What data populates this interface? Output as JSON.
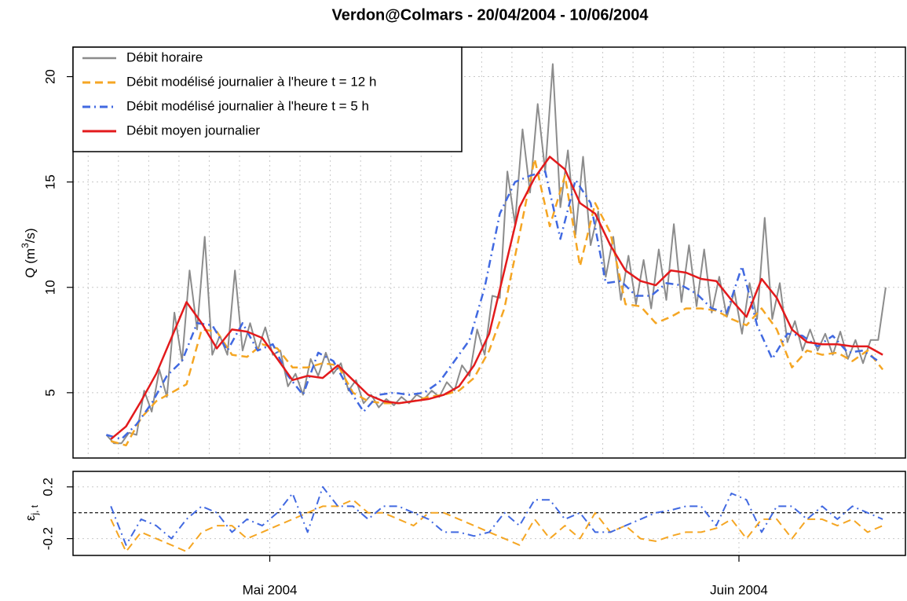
{
  "chart_data": [
    {
      "type": "line",
      "title": "Verdon@Colmars - 20/04/2004 - 10/06/2004",
      "ylabel": [
        "Q (m",
        "3",
        "/s)"
      ],
      "xlim": [
        -13,
        42
      ],
      "ylim": [
        1.9,
        21.4
      ],
      "yticks": [
        5,
        10,
        15,
        20
      ],
      "grid": true,
      "xgrid": [
        -12,
        -10,
        -8,
        -6,
        -4,
        -2,
        0,
        2,
        4,
        6,
        8,
        10,
        12,
        14,
        16,
        18,
        20,
        22,
        24,
        26,
        28,
        30,
        32,
        34,
        36,
        38,
        40
      ],
      "legend": "top-left",
      "series": [
        {
          "name": "Débit horaire",
          "color": "#8c8c8c",
          "dash": "solid",
          "width": 2,
          "x": [
            -10.8,
            -10.3,
            -9.8,
            -9.3,
            -8.8,
            -8.3,
            -7.8,
            -7.3,
            -6.8,
            -6.3,
            -5.8,
            -5.3,
            -4.8,
            -4.3,
            -3.8,
            -3.3,
            -2.8,
            -2.3,
            -1.8,
            -1.3,
            -0.8,
            -0.3,
            0.2,
            0.7,
            1.2,
            1.7,
            2.2,
            2.7,
            3.2,
            3.7,
            4.2,
            4.7,
            5.2,
            5.7,
            6.2,
            6.7,
            7.2,
            7.7,
            8.2,
            8.7,
            9.2,
            9.7,
            10.2,
            10.7,
            11.2,
            11.7,
            12.2,
            12.7,
            13.2,
            13.7,
            14.2,
            14.7,
            15.2,
            15.7,
            16.2,
            16.7,
            17.2,
            17.7,
            18.2,
            18.7,
            19.2,
            19.7,
            20.2,
            20.7,
            21.2,
            21.7,
            22.2,
            22.7,
            23.2,
            23.7,
            24.2,
            24.7,
            25.2,
            25.7,
            26.2,
            26.7,
            27.2,
            27.7,
            28.2,
            28.7,
            29.2,
            29.7,
            30.2,
            30.7,
            31.2,
            31.7,
            32.2,
            32.7,
            33.2,
            33.7,
            34.2,
            34.7,
            35.2,
            35.7,
            36.2,
            36.7,
            37.2,
            37.7,
            38.2,
            38.7,
            39.2,
            39.7,
            40.2,
            40.7
          ],
          "values": [
            3.0,
            2.6,
            2.6,
            3.1,
            3.0,
            5.1,
            4.1,
            6.1,
            4.8,
            8.8,
            6.5,
            10.8,
            8.0,
            12.4,
            6.8,
            7.7,
            6.8,
            10.8,
            7.0,
            8.3,
            7.0,
            8.1,
            6.8,
            7.0,
            5.3,
            5.9,
            4.9,
            6.6,
            5.8,
            6.9,
            5.9,
            6.4,
            5.1,
            5.6,
            4.5,
            4.9,
            4.3,
            4.7,
            4.4,
            4.8,
            4.5,
            4.9,
            4.7,
            5.1,
            4.8,
            5.5,
            5.1,
            6.3,
            5.8,
            8.0,
            6.8,
            9.6,
            9.5,
            15.5,
            13.0,
            17.5,
            14.5,
            18.7,
            15.5,
            20.6,
            13.8,
            16.5,
            12.5,
            16.2,
            12.0,
            13.6,
            10.5,
            12.4,
            9.4,
            11.5,
            9.2,
            11.3,
            9.0,
            11.8,
            9.4,
            13.0,
            9.3,
            12.0,
            9.1,
            11.8,
            8.8,
            10.5,
            8.6,
            9.8,
            7.8,
            10.2,
            8.5,
            13.3,
            8.5,
            10.2,
            7.4,
            8.4,
            7.0,
            8.0,
            7.0,
            7.8,
            6.8,
            7.9,
            6.6,
            7.5,
            6.4,
            7.5,
            7.5,
            10.0
          ]
        },
        {
          "name": "Débit modélisé journalier à l'heure t = 12 h",
          "color": "#f5a623",
          "dash": "dashed",
          "width": 2.5,
          "x": [
            -10.5,
            -9.5,
            -8.5,
            -7.5,
            -6.5,
            -5.5,
            -4.5,
            -3.5,
            -2.5,
            -1.5,
            -0.5,
            0.5,
            1.5,
            2.5,
            3.5,
            4.5,
            5.5,
            6.5,
            7.5,
            8.5,
            9.5,
            10.5,
            11.5,
            12.5,
            13.5,
            14.5,
            15.5,
            16.5,
            17.5,
            18.5,
            19.5,
            20.5,
            21.5,
            22.5,
            23.5,
            24.5,
            25.5,
            26.5,
            27.5,
            28.5,
            29.5,
            30.5,
            31.5,
            32.5,
            33.5,
            34.5,
            35.5,
            36.5,
            37.5,
            38.5,
            39.5,
            40.5
          ],
          "values": [
            2.7,
            2.5,
            3.8,
            4.6,
            5.0,
            5.4,
            8.0,
            7.9,
            6.8,
            6.7,
            7.3,
            7.1,
            6.2,
            6.2,
            6.4,
            6.3,
            5.0,
            4.6,
            4.5,
            4.5,
            4.6,
            4.8,
            4.9,
            5.1,
            5.7,
            7.0,
            9.0,
            12.5,
            16.1,
            12.9,
            15.3,
            11.0,
            14.0,
            12.6,
            9.2,
            9.1,
            8.3,
            8.6,
            9.0,
            9.0,
            8.9,
            8.5,
            8.2,
            9.0,
            8.0,
            6.2,
            7.0,
            6.8,
            6.9,
            6.5,
            7.0,
            6.1
          ]
        },
        {
          "name": "Débit modélisé journalier à l'heure t = 5 h",
          "color": "#4169e1",
          "dash": "dashdot",
          "width": 2.5,
          "x": [
            -10.8,
            -9.8,
            -8.8,
            -7.8,
            -6.8,
            -5.8,
            -4.8,
            -3.8,
            -2.8,
            -1.8,
            -0.8,
            0.2,
            1.2,
            2.2,
            3.2,
            4.2,
            5.2,
            6.2,
            7.2,
            8.2,
            9.2,
            10.2,
            11.2,
            12.2,
            13.2,
            14.2,
            15.2,
            16.2,
            17.2,
            18.2,
            19.2,
            20.2,
            21.2,
            22.2,
            23.2,
            24.2,
            25.2,
            26.2,
            27.2,
            28.2,
            29.2,
            30.2,
            31.2,
            32.2,
            33.2,
            34.2,
            35.2,
            36.2,
            37.2,
            38.2,
            39.2,
            40.2
          ],
          "values": [
            3.0,
            2.8,
            3.5,
            4.5,
            5.8,
            6.5,
            8.3,
            8.2,
            7.0,
            8.3,
            7.0,
            7.3,
            5.8,
            4.9,
            6.9,
            6.5,
            5.2,
            4.1,
            4.9,
            5.0,
            4.9,
            5.0,
            5.5,
            6.5,
            7.5,
            10.0,
            13.5,
            15.0,
            15.3,
            15.5,
            12.3,
            15.1,
            14.0,
            10.2,
            10.3,
            9.6,
            9.6,
            10.2,
            10.1,
            9.7,
            9.0,
            8.8,
            11.0,
            8.2,
            6.6,
            7.8,
            7.7,
            7.2,
            7.7,
            6.9,
            7.0,
            6.5
          ]
        },
        {
          "name": "Débit moyen journalier",
          "color": "#e31a1c",
          "dash": "solid",
          "width": 2.5,
          "x": [
            -10.5,
            -9.5,
            -8.5,
            -7.5,
            -6.5,
            -5.5,
            -4.5,
            -3.5,
            -2.5,
            -1.5,
            -0.5,
            0.5,
            1.5,
            2.5,
            3.5,
            4.5,
            5.5,
            6.5,
            7.5,
            8.5,
            9.5,
            10.5,
            11.5,
            12.5,
            13.5,
            14.5,
            15.5,
            16.5,
            17.5,
            18.5,
            19.5,
            20.5,
            21.5,
            22.5,
            23.5,
            24.5,
            25.5,
            26.5,
            27.5,
            28.5,
            29.5,
            30.5,
            31.5,
            32.5,
            33.5,
            34.5,
            35.5,
            36.5,
            37.5,
            38.5,
            39.5,
            40.5
          ],
          "values": [
            2.8,
            3.4,
            4.6,
            5.9,
            7.6,
            9.3,
            8.3,
            7.1,
            8.0,
            7.9,
            7.6,
            6.6,
            5.6,
            5.8,
            5.7,
            6.3,
            5.6,
            4.9,
            4.6,
            4.5,
            4.6,
            4.7,
            4.9,
            5.3,
            6.3,
            7.8,
            10.8,
            13.8,
            15.2,
            16.2,
            15.6,
            14.0,
            13.5,
            12.0,
            10.8,
            10.3,
            10.1,
            10.8,
            10.7,
            10.4,
            10.3,
            9.4,
            8.6,
            10.4,
            9.5,
            8.0,
            7.4,
            7.3,
            7.3,
            7.2,
            7.2,
            6.8
          ]
        }
      ]
    },
    {
      "type": "line",
      "ylabel": [
        "ε",
        "j, t"
      ],
      "xlim": [
        -13,
        42
      ],
      "ylim": [
        -0.33,
        0.32
      ],
      "yticks": [
        -0.2,
        0.2
      ],
      "xticks": [
        {
          "value": 0,
          "label": "Mai 2004"
        },
        {
          "value": 31,
          "label": "Juin 2004"
        }
      ],
      "grid": true,
      "reference_line": 0,
      "series": [
        {
          "color": "#f5a623",
          "dash": "dashed",
          "width": 2,
          "x": [
            -10.5,
            -9.5,
            -8.5,
            -7.5,
            -6.5,
            -5.5,
            -4.5,
            -3.5,
            -2.5,
            -1.5,
            -0.5,
            0.5,
            1.5,
            2.5,
            3.5,
            4.5,
            5.5,
            6.5,
            7.5,
            8.5,
            9.5,
            10.5,
            11.5,
            12.5,
            13.5,
            14.5,
            15.5,
            16.5,
            17.5,
            18.5,
            19.5,
            20.5,
            21.5,
            22.5,
            23.5,
            24.5,
            25.5,
            26.5,
            27.5,
            28.5,
            29.5,
            30.5,
            31.5,
            32.5,
            33.5,
            34.5,
            35.5,
            36.5,
            37.5,
            38.5,
            39.5,
            40.5
          ],
          "values": [
            -0.05,
            -0.3,
            -0.15,
            -0.2,
            -0.25,
            -0.3,
            -0.15,
            -0.1,
            -0.1,
            -0.2,
            -0.15,
            -0.1,
            -0.05,
            0,
            0.05,
            0.05,
            0.1,
            0,
            0,
            -0.05,
            -0.1,
            0,
            0,
            -0.05,
            -0.1,
            -0.15,
            -0.2,
            -0.25,
            -0.05,
            -0.2,
            -0.1,
            -0.2,
            0,
            -0.15,
            -0.1,
            -0.2,
            -0.22,
            -0.18,
            -0.15,
            -0.15,
            -0.12,
            -0.05,
            -0.2,
            -0.05,
            -0.05,
            -0.2,
            -0.05,
            -0.05,
            -0.1,
            -0.05,
            -0.15,
            -0.1
          ]
        },
        {
          "color": "#4169e1",
          "dash": "dashdot",
          "width": 2,
          "x": [
            -10.5,
            -9.5,
            -8.5,
            -7.5,
            -6.5,
            -5.5,
            -4.5,
            -3.5,
            -2.5,
            -1.5,
            -0.5,
            0.5,
            1.5,
            2.5,
            3.5,
            4.5,
            5.5,
            6.5,
            7.5,
            8.5,
            9.5,
            10.5,
            11.5,
            12.5,
            13.5,
            14.5,
            15.5,
            16.5,
            17.5,
            18.5,
            19.5,
            20.5,
            21.5,
            22.5,
            23.5,
            24.5,
            25.5,
            26.5,
            27.5,
            28.5,
            29.5,
            30.5,
            31.5,
            32.5,
            33.5,
            34.5,
            35.5,
            36.5,
            37.5,
            38.5,
            39.5,
            40.5
          ],
          "values": [
            0.05,
            -0.25,
            -0.05,
            -0.1,
            -0.2,
            -0.05,
            0.05,
            0,
            -0.15,
            -0.05,
            -0.1,
            0,
            0.15,
            -0.15,
            0.2,
            0.05,
            0.05,
            -0.05,
            0.05,
            0.05,
            0,
            -0.05,
            -0.15,
            -0.15,
            -0.18,
            -0.15,
            0,
            -0.1,
            0.1,
            0.1,
            -0.05,
            0,
            -0.15,
            -0.15,
            -0.1,
            -0.05,
            0,
            0.02,
            0.05,
            0.05,
            -0.1,
            0.15,
            0.1,
            -0.15,
            0.05,
            0.05,
            -0.05,
            0.05,
            -0.05,
            0.05,
            0,
            -0.05
          ]
        }
      ]
    }
  ]
}
